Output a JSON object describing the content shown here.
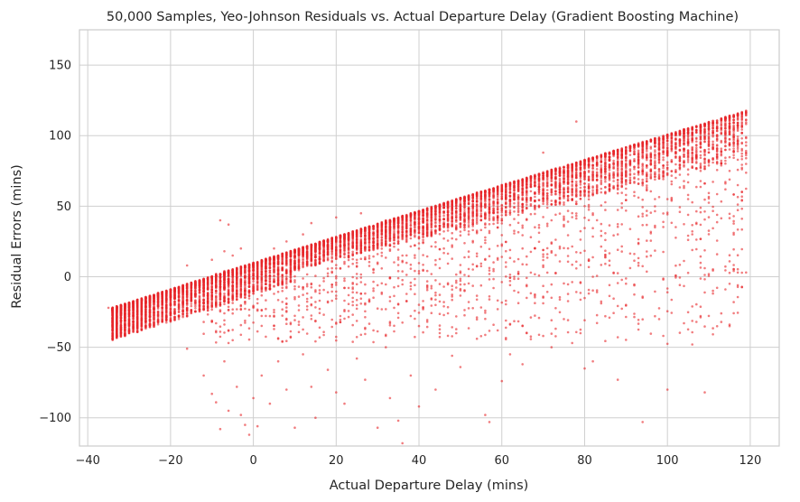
{
  "chart_data": {
    "type": "scatter",
    "title": "50,000 Samples, Yeo-Johnson Residuals vs. Actual Departure Delay (Gradient Boosting Machine)",
    "xlabel": "Actual Departure Delay (mins)",
    "ylabel": "Residual Errors (mins)",
    "xlim": [
      -42,
      127
    ],
    "ylim": [
      -120,
      175
    ],
    "xticks": [
      -40,
      -20,
      0,
      20,
      40,
      60,
      80,
      100,
      120
    ],
    "yticks": [
      -100,
      -50,
      0,
      50,
      100,
      150
    ],
    "xtick_labels": [
      "−40",
      "−20",
      "0",
      "20",
      "40",
      "60",
      "80",
      "100",
      "120"
    ],
    "ytick_labels": [
      "−100",
      "−50",
      "0",
      "50",
      "100",
      "150"
    ],
    "grid": true,
    "point_color": "#e8262a",
    "dense_band": {
      "description_x_range": [
        -35,
        119
      ],
      "upper_edge_approx": [
        [
          -35,
          -22
        ],
        [
          -20,
          -8
        ],
        [
          0,
          10
        ],
        [
          20,
          27
        ],
        [
          40,
          48
        ],
        [
          60,
          66
        ],
        [
          80,
          86
        ],
        [
          100,
          103
        ],
        [
          119,
          122
        ]
      ]
    },
    "series": [
      {
        "values": [
          [
            -35,
            -22
          ],
          [
            -32,
            -23
          ],
          [
            -30,
            -24
          ],
          [
            -28,
            -20
          ],
          [
            -27,
            -17
          ],
          [
            -25,
            -18
          ],
          [
            -24,
            -14
          ],
          [
            -23,
            -20
          ],
          [
            -22,
            -12
          ],
          [
            -21,
            -16
          ],
          [
            -20,
            -11
          ],
          [
            -19,
            -13
          ],
          [
            -18,
            -10
          ],
          [
            -17,
            -8
          ],
          [
            -16,
            -14
          ],
          [
            -15,
            -5
          ],
          [
            -14,
            -7
          ],
          [
            -13,
            -3
          ],
          [
            -12,
            -12
          ],
          [
            -11,
            -1
          ],
          [
            -10,
            -5
          ],
          [
            -9,
            2
          ],
          [
            -8,
            -18
          ],
          [
            -7,
            4
          ],
          [
            -6,
            -2
          ],
          [
            -16,
            8
          ],
          [
            -10,
            12
          ],
          [
            -7,
            18
          ],
          [
            -5,
            15
          ],
          [
            -3,
            20
          ],
          [
            -2,
            8
          ],
          [
            5,
            20
          ],
          [
            8,
            25
          ],
          [
            12,
            30
          ],
          [
            -16,
            -51
          ],
          [
            -12,
            -70
          ],
          [
            -10,
            -83
          ],
          [
            -9,
            -89
          ],
          [
            -8,
            -108
          ],
          [
            -7,
            -60
          ],
          [
            -6,
            -95
          ],
          [
            -4,
            -78
          ],
          [
            -3,
            -98
          ],
          [
            -2,
            -105
          ],
          [
            -1,
            -112
          ],
          [
            0,
            -86
          ],
          [
            1,
            -106
          ],
          [
            2,
            -70
          ],
          [
            4,
            -90
          ],
          [
            6,
            -60
          ],
          [
            8,
            -80
          ],
          [
            10,
            -107
          ],
          [
            12,
            -55
          ],
          [
            14,
            -78
          ],
          [
            15,
            -100
          ],
          [
            18,
            -66
          ],
          [
            20,
            -82
          ],
          [
            22,
            -90
          ],
          [
            25,
            -58
          ],
          [
            27,
            -73
          ],
          [
            30,
            -107
          ],
          [
            32,
            -50
          ],
          [
            33,
            -86
          ],
          [
            35,
            -102
          ],
          [
            36,
            -118
          ],
          [
            38,
            -70
          ],
          [
            40,
            -92
          ],
          [
            44,
            -80
          ],
          [
            48,
            -56
          ],
          [
            50,
            -64
          ],
          [
            54,
            -44
          ],
          [
            56,
            -98
          ],
          [
            57,
            -103
          ],
          [
            60,
            -74
          ],
          [
            62,
            -55
          ],
          [
            65,
            -62
          ],
          [
            66,
            -40
          ],
          [
            70,
            -42
          ],
          [
            72,
            -50
          ],
          [
            75,
            -30
          ],
          [
            77,
            -47
          ],
          [
            80,
            -65
          ],
          [
            82,
            -60
          ],
          [
            85,
            -28
          ],
          [
            88,
            -73
          ],
          [
            90,
            -20
          ],
          [
            94,
            -103
          ],
          [
            98,
            -30
          ],
          [
            100,
            -80
          ],
          [
            104,
            -33
          ],
          [
            106,
            -48
          ],
          [
            109,
            -82
          ],
          [
            111,
            -10
          ],
          [
            113,
            -26
          ],
          [
            115,
            -34
          ],
          [
            117,
            3
          ],
          [
            119,
            3
          ],
          [
            64,
            2
          ],
          [
            68,
            20
          ],
          [
            72,
            40
          ],
          [
            76,
            60
          ],
          [
            80,
            50
          ],
          [
            84,
            70
          ],
          [
            88,
            30
          ],
          [
            92,
            60
          ],
          [
            96,
            80
          ],
          [
            100,
            55
          ],
          [
            104,
            90
          ],
          [
            108,
            75
          ],
          [
            112,
            85
          ],
          [
            116,
            95
          ],
          [
            118,
            60
          ],
          [
            119,
            80
          ],
          [
            78,
            110
          ],
          [
            70,
            88
          ],
          [
            65,
            62
          ],
          [
            58,
            40
          ],
          [
            52,
            30
          ],
          [
            46,
            20
          ],
          [
            42,
            35
          ],
          [
            36,
            15
          ],
          [
            30,
            10
          ],
          [
            -8,
            40
          ],
          [
            -6,
            37
          ],
          [
            14,
            38
          ],
          [
            20,
            42
          ],
          [
            26,
            45
          ],
          [
            32,
            40
          ]
        ]
      }
    ]
  }
}
